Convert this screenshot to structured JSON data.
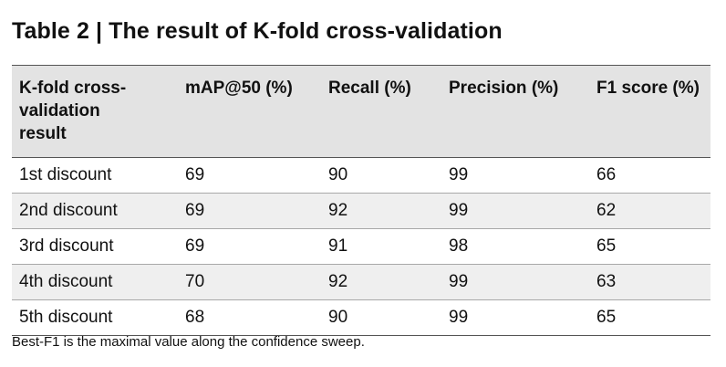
{
  "table": {
    "title": "Table 2 | The result of K-fold cross-validation",
    "headers": [
      "K-fold cross-validation result",
      "mAP@50 (%)",
      "Recall (%)",
      "Precision (%)",
      "F1 score (%)"
    ],
    "rows": [
      [
        "1st discount",
        "69",
        "90",
        "99",
        "66"
      ],
      [
        "2nd discount",
        "69",
        "92",
        "99",
        "62"
      ],
      [
        "3rd discount",
        "69",
        "91",
        "98",
        "65"
      ],
      [
        "4th discount",
        "70",
        "92",
        "99",
        "63"
      ],
      [
        "5th discount",
        "68",
        "90",
        "99",
        "65"
      ]
    ],
    "footnote": "Best-F1 is the maximal value along the confidence sweep."
  }
}
